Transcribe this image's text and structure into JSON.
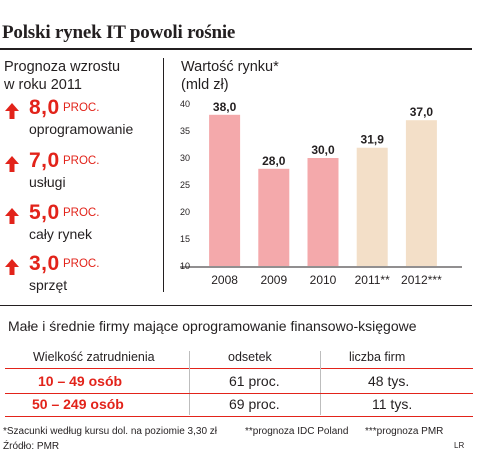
{
  "title": "Polski rynek IT powoli rośnie",
  "left_caption": [
    "Prognoza wzrostu",
    "w roku 2011"
  ],
  "growth": [
    {
      "value": "8,0",
      "unit": "PROC.",
      "label": "oprogramowanie"
    },
    {
      "value": "7,0",
      "unit": "PROC.",
      "label": "usługi"
    },
    {
      "value": "5,0",
      "unit": "PROC.",
      "label": "cały rynek"
    },
    {
      "value": "3,0",
      "unit": "PROC.",
      "label": "sprzęt"
    }
  ],
  "chart_caption": [
    "Wartość rynku*",
    "(mld zł)"
  ],
  "chart_data": {
    "type": "bar",
    "ylabel": "Wartość rynku* (mld zł)",
    "categories": [
      "2008",
      "2009",
      "2010",
      "2011**",
      "2012***"
    ],
    "values": [
      38.0,
      28.0,
      30.0,
      31.9,
      37.0
    ],
    "value_labels": [
      "38,0",
      "28,0",
      "30,0",
      "31,9",
      "37,0"
    ],
    "ylim": [
      10,
      40
    ],
    "yticks": [
      10,
      15,
      20,
      25,
      30,
      35,
      40
    ],
    "grid": false,
    "colors": {
      "actual": "#f4a9ab",
      "forecast": "#f3dfc8"
    },
    "forecast_from_index": 3
  },
  "table": {
    "subtitle": "Małe i średnie firmy mające oprogramowanie finansowo-księgowe",
    "headers": [
      "Wielkość zatrudnienia",
      "odsetek",
      "liczba firm"
    ],
    "rows": [
      {
        "size": "10 – 49 osób",
        "share": "61 proc.",
        "count": "48 tys."
      },
      {
        "size": "50 – 249 osób",
        "share": "69 proc.",
        "count": "11 tys."
      }
    ]
  },
  "footnotes": {
    "n1": "*Szacunki według kursu dol. na poziomie 3,30 zł",
    "n2": "**prognoza IDC Poland",
    "n3": "***prognoza PMR",
    "source": "Źródło: PMR",
    "credit": "LR"
  },
  "colors": {
    "accent_red": "#e2231a",
    "text": "#231f20",
    "table_line": "#e2231a"
  }
}
